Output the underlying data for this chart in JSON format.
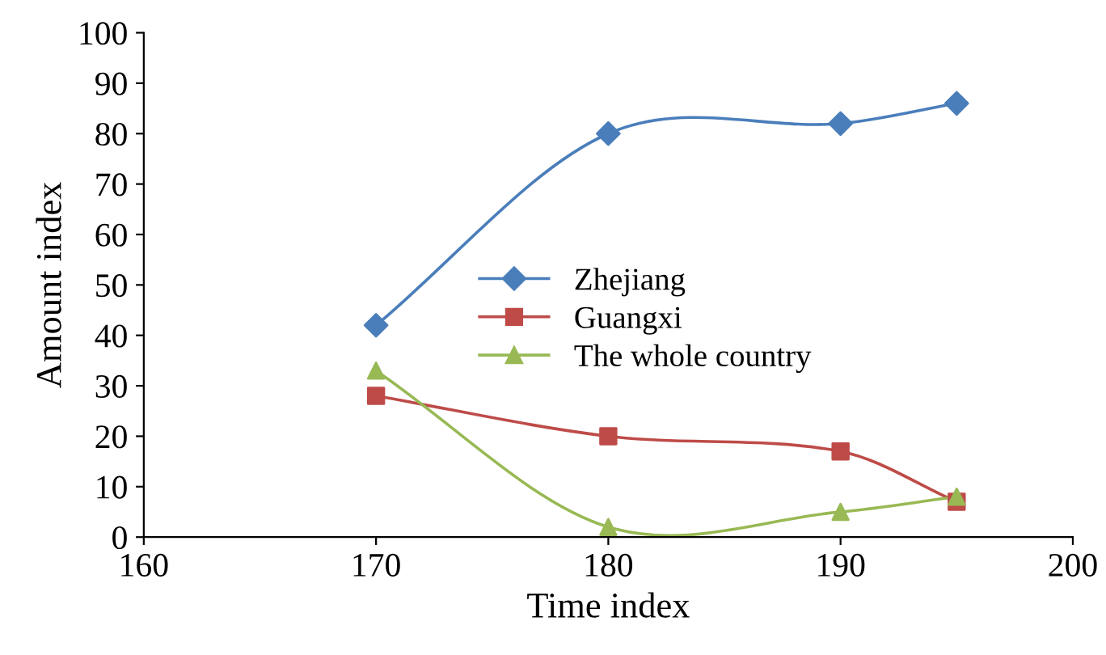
{
  "chart_data": {
    "type": "line",
    "xlabel": "Time index",
    "ylabel": "Amount index",
    "x": [
      170,
      180,
      190,
      195
    ],
    "series": [
      {
        "name": "Zhejiang",
        "color": "#4a7ebb",
        "marker": "diamond",
        "values": [
          42,
          80,
          82,
          86
        ]
      },
      {
        "name": "Guangxi",
        "color": "#be4b48",
        "marker": "square",
        "values": [
          28,
          20,
          17,
          7
        ]
      },
      {
        "name": "The whole country",
        "color": "#98b954",
        "marker": "triangle",
        "values": [
          33,
          2,
          5,
          8
        ]
      }
    ],
    "xlim": [
      160,
      200
    ],
    "xticks": [
      160,
      170,
      180,
      190,
      200
    ],
    "ylim": [
      0,
      100
    ],
    "yticks": [
      0,
      10,
      20,
      30,
      40,
      50,
      60,
      70,
      80,
      90,
      100
    ],
    "grid": false,
    "legend": "center",
    "line_style": "solid"
  }
}
